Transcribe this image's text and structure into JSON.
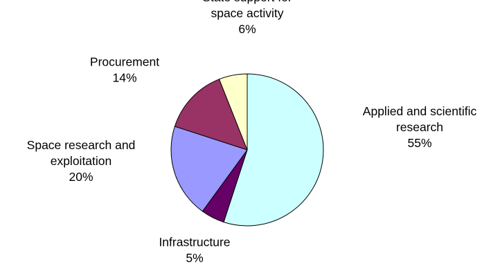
{
  "chart_data": {
    "type": "pie",
    "title": "",
    "slices": [
      {
        "label_lines": [
          "Applied and scientific",
          "research"
        ],
        "pct_label": "55%",
        "value": 55,
        "color": "#ccffff"
      },
      {
        "label_lines": [
          "Infrastructure"
        ],
        "pct_label": "5%",
        "value": 5,
        "color": "#660066"
      },
      {
        "label_lines": [
          "Space research and",
          "exploitation"
        ],
        "pct_label": "20%",
        "value": 20,
        "color": "#9999ff"
      },
      {
        "label_lines": [
          "Procurement"
        ],
        "pct_label": "14%",
        "value": 14,
        "color": "#993366"
      },
      {
        "label_lines": [
          "State support for",
          "space activity"
        ],
        "pct_label": "6%",
        "value": 6,
        "color": "#ffffcc"
      }
    ],
    "legend": "none"
  }
}
